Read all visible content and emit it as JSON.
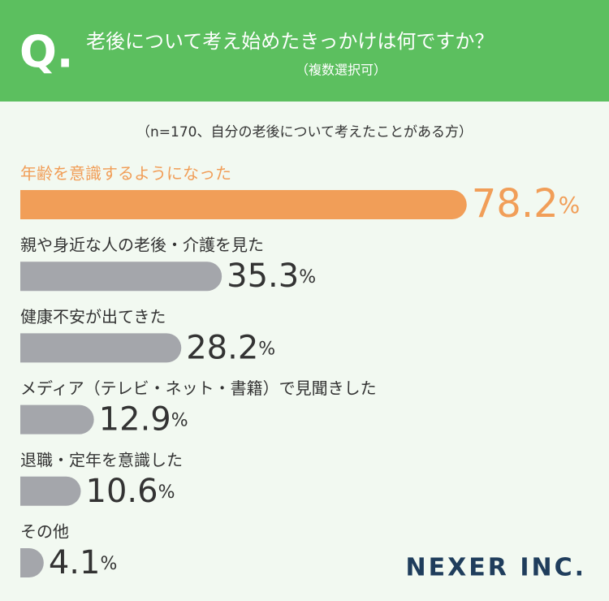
{
  "chart_data": {
    "type": "hbar",
    "title_mark": "Q.",
    "title": "老後について考え始めたきっかけは何ですか？",
    "subtitle": "（複数選択可）",
    "note": "（n=170、自分の老後について考えたことがある方）",
    "categories": [
      "年齢を意識するようになった",
      "親や身近な人の老後・介護を見た",
      "健康不安が出てきた",
      "メディア（テレビ・ネット・書籍）で見聞きした",
      "退職・定年を意識した",
      "その他"
    ],
    "values": [
      78.2,
      35.3,
      28.2,
      12.9,
      10.6,
      4.1
    ],
    "value_labels": [
      "78.2%",
      "35.3%",
      "28.2%",
      "12.9%",
      "10.6%",
      "4.1%"
    ],
    "colors": [
      "#f19e58",
      "#a4a6ab",
      "#a4a6ab",
      "#a4a6ab",
      "#a4a6ab",
      "#a4a6ab"
    ],
    "highlight": 0,
    "brand": "NEXER INC."
  }
}
